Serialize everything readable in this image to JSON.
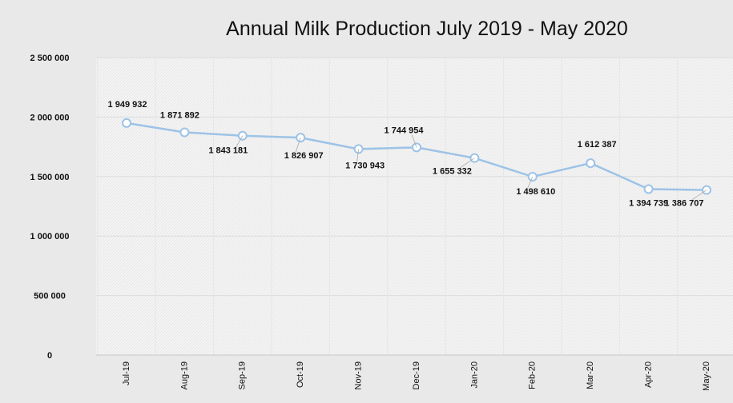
{
  "chart_data": {
    "type": "line",
    "title": "Annual Milk Production July 2019 - May 2020",
    "xlabel": "",
    "ylabel": "",
    "ylim": [
      0,
      2500000
    ],
    "yticks": [
      "2 500 000",
      "2 000 000",
      "1 500 000",
      "1 000 000",
      "500 000",
      "0"
    ],
    "ytick_values": [
      2500000,
      2000000,
      1500000,
      1000000,
      500000,
      0
    ],
    "grid": true,
    "legend": "none",
    "categories": [
      "Jul-19",
      "Aug-19",
      "Sep-19",
      "Oct-19",
      "Nov-19",
      "Dec-19",
      "Jan-20",
      "Feb-20",
      "Mar-20",
      "Apr-20",
      "May-20"
    ],
    "series": [
      {
        "values": [
          1949932,
          1871892,
          1843181,
          1826907,
          1730943,
          1744954,
          1655332,
          1498610,
          1612387,
          1394739,
          1386707
        ],
        "labels": [
          "1 949 932",
          "1 871 892",
          "1 843 181",
          "1 826 907",
          "1 730 943",
          "1 744 954",
          "1 655 332",
          "1 498 610",
          "1 612 387",
          "1 394 739",
          "1 386 707"
        ]
      }
    ],
    "colors": {
      "line": "#9dc3e6",
      "marker_fill": "#ffffff",
      "plot_bg": "#f4f4f4",
      "page_bg": "#e9e9e9",
      "text": "#111111"
    }
  }
}
